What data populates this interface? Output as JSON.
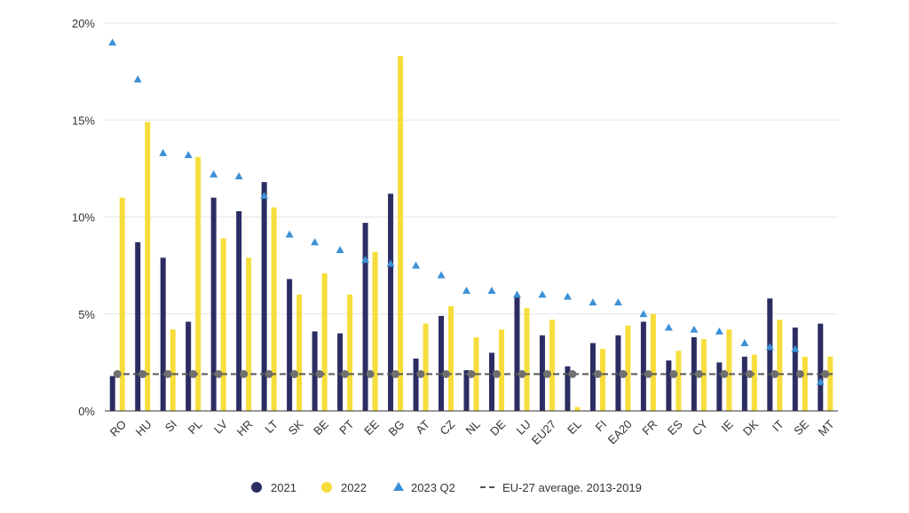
{
  "chart_data": {
    "type": "bar",
    "categories": [
      "RO",
      "HU",
      "SI",
      "PL",
      "LV",
      "HR",
      "LT",
      "SK",
      "BE",
      "PT",
      "EE",
      "BG",
      "AT",
      "CZ",
      "NL",
      "DE",
      "LU",
      "EU27",
      "EL",
      "FI",
      "EA20",
      "FR",
      "ES",
      "CY",
      "IE",
      "DK",
      "IT",
      "SE",
      "MT"
    ],
    "series": [
      {
        "name": "2021",
        "kind": "bar",
        "color": "#2b2d62",
        "values": [
          1.8,
          8.7,
          7.9,
          4.6,
          11.0,
          10.3,
          11.8,
          6.8,
          4.1,
          4.0,
          9.7,
          11.2,
          2.7,
          4.9,
          2.1,
          3.0,
          5.9,
          3.9,
          2.3,
          3.5,
          3.9,
          4.6,
          2.6,
          3.8,
          2.5,
          2.8,
          5.8,
          4.3,
          4.5
        ]
      },
      {
        "name": "2022",
        "kind": "bar",
        "color": "#f7dd3b",
        "values": [
          11.0,
          14.9,
          4.2,
          13.1,
          8.9,
          7.9,
          10.5,
          6.0,
          7.1,
          6.0,
          8.2,
          18.3,
          4.5,
          5.4,
          3.8,
          4.2,
          5.3,
          4.7,
          0.2,
          3.2,
          4.4,
          5.0,
          3.1,
          3.7,
          4.2,
          2.9,
          4.7,
          2.8,
          2.8
        ]
      },
      {
        "name": "2023 Q2",
        "kind": "marker",
        "color": "#3c91d6",
        "values": [
          19.0,
          17.1,
          13.3,
          13.2,
          12.2,
          12.1,
          11.1,
          9.1,
          8.7,
          8.3,
          7.8,
          7.6,
          7.5,
          7.0,
          6.2,
          6.2,
          6.0,
          6.0,
          5.9,
          5.6,
          5.6,
          5.0,
          4.3,
          4.2,
          4.1,
          3.5,
          3.3,
          3.2,
          1.5
        ]
      }
    ],
    "reference_line": {
      "name": "EU-27 average. 2013-2019",
      "value": 1.9,
      "color": "#555555"
    },
    "y_ticks": [
      "0%",
      "5%",
      "10%",
      "15%",
      "20%"
    ],
    "y_tick_values": [
      0,
      5,
      10,
      15,
      20
    ],
    "ylim": [
      0,
      20
    ],
    "grid": true,
    "legend_position": "bottom-center",
    "title": "",
    "xlabel": "",
    "ylabel": ""
  },
  "legend": {
    "item_2021": "2021",
    "item_2022": "2022",
    "item_2023": "2023 Q2",
    "item_avg": "EU-27 average. 2013-2019"
  }
}
